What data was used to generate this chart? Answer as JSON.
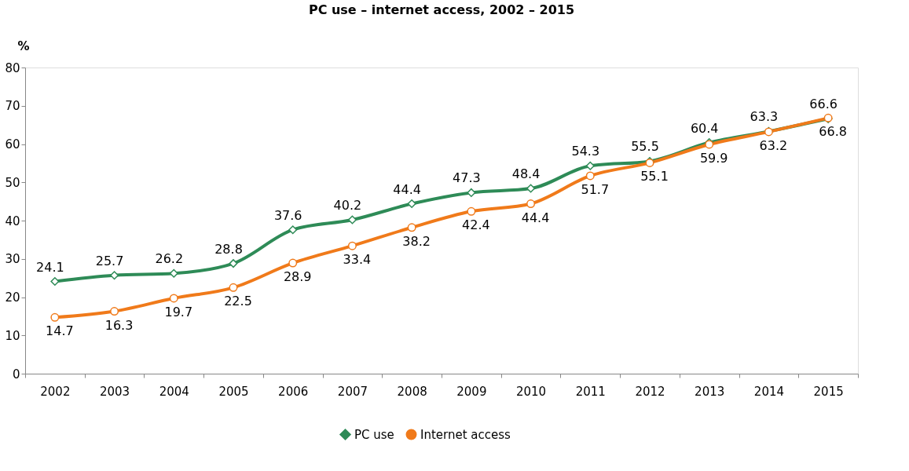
{
  "chart_data": {
    "type": "line",
    "title": "PC use – internet access,  2002 – 2015",
    "ylabel": "%",
    "categories": [
      "2002",
      "2003",
      "2004",
      "2005",
      "2006",
      "2007",
      "2008",
      "2009",
      "2010",
      "2011",
      "2012",
      "2013",
      "2014",
      "2015"
    ],
    "series": [
      {
        "name": "PC use",
        "color": "#2e8b57",
        "marker": "diamond",
        "values": [
          24.1,
          25.7,
          26.2,
          28.8,
          37.6,
          40.2,
          44.4,
          47.3,
          48.4,
          54.3,
          55.5,
          60.4,
          63.3,
          66.6
        ]
      },
      {
        "name": "Internet access",
        "color": "#f07a1a",
        "marker": "circle",
        "values": [
          14.7,
          16.3,
          19.7,
          22.5,
          28.9,
          33.4,
          38.2,
          42.4,
          44.4,
          51.7,
          55.1,
          59.9,
          63.2,
          66.8
        ]
      }
    ],
    "ylim": [
      0,
      80
    ],
    "yticks": [
      0,
      10,
      20,
      30,
      40,
      50,
      60,
      70,
      80
    ],
    "grid": false,
    "line_style": "solid",
    "legend": "bottom",
    "data_labels": true
  }
}
